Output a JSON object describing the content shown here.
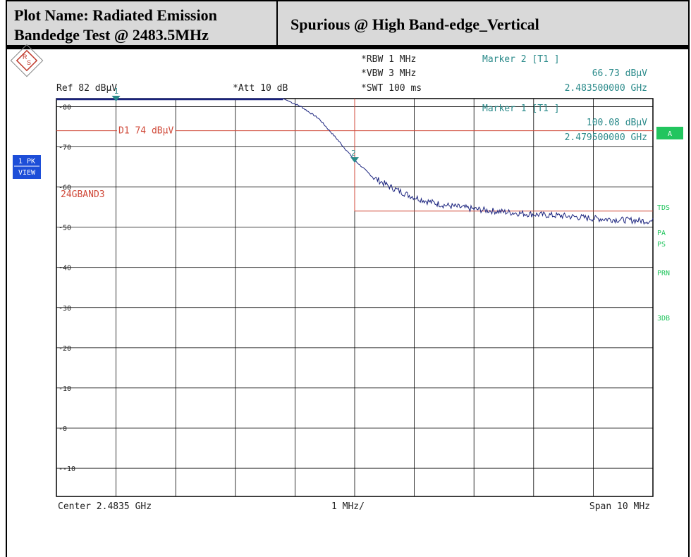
{
  "header": {
    "plot_name_line1": "Plot Name: Radiated Emission",
    "plot_name_line2": "Bandedge Test @ 2483.5MHz",
    "description": "Spurious   @ High Band-edge_Vertical"
  },
  "settings": {
    "rbw": "*RBW 1 MHz",
    "vbw": "*VBW 3 MHz",
    "swt": "*SWT 100 ms",
    "ref": "Ref  82 dBµV",
    "att": "*Att   10 dB"
  },
  "markers": {
    "m2_title": "Marker 2 [T1 ]",
    "m2_level": "66.73 dBµV",
    "m2_freq": "2.483500000 GHz",
    "m1_title": "Marker 1 [T1 ]",
    "m1_level": "100.08 dBµV",
    "m1_freq": "2.479500000 GHz"
  },
  "side_labels": {
    "pk_view_1": "1 PK",
    "pk_view_2": "VIEW",
    "a": "A",
    "tds": "TDS",
    "pa": "PA",
    "ps": "PS",
    "prn": "PRN",
    "db3": "3DB"
  },
  "footer": {
    "center": "Center 2.4835 GHz",
    "div": "1 MHz/",
    "span": "Span 10 MHz"
  },
  "colors": {
    "trace": "#1a237e",
    "limit_line": "#d04a3a",
    "marker": "#2a8a8a",
    "side_green": "#22c55e",
    "pk_blue": "#1d4ed8"
  },
  "chart_data": {
    "type": "line",
    "xlabel": "",
    "ylabel": "",
    "x_unit": "GHz",
    "y_unit": "dBµV",
    "xlim": [
      2.4785,
      2.4885
    ],
    "ylim": [
      -17,
      82
    ],
    "y_ticks": [
      80,
      70,
      60,
      50,
      40,
      30,
      20,
      10,
      0,
      -10
    ],
    "y_tick_labels": [
      "80",
      "70",
      "60",
      "50",
      "40",
      "30",
      "20",
      "10",
      "0",
      "-10"
    ],
    "limit_line": {
      "label": "D1 74 dBµV",
      "value": 74
    },
    "band_label": "24GBAND3",
    "band_edge_x": 2.4835,
    "band_level": 54,
    "series": [
      {
        "x": [
          2.4785,
          2.4795,
          2.4805,
          2.4815,
          2.4823,
          2.4826,
          2.4829,
          2.4832,
          2.4835,
          2.4838,
          2.4841,
          2.4844,
          2.4847,
          2.485,
          2.4855,
          2.486,
          2.4865,
          2.487,
          2.4875,
          2.488,
          2.4885
        ],
        "values": [
          82,
          82,
          82,
          82,
          82,
          80,
          77,
          72,
          66.7,
          62.5,
          60,
          58,
          56.5,
          55.5,
          54.5,
          53.8,
          53.2,
          52.8,
          52.2,
          51.8,
          51.5
        ]
      }
    ]
  }
}
